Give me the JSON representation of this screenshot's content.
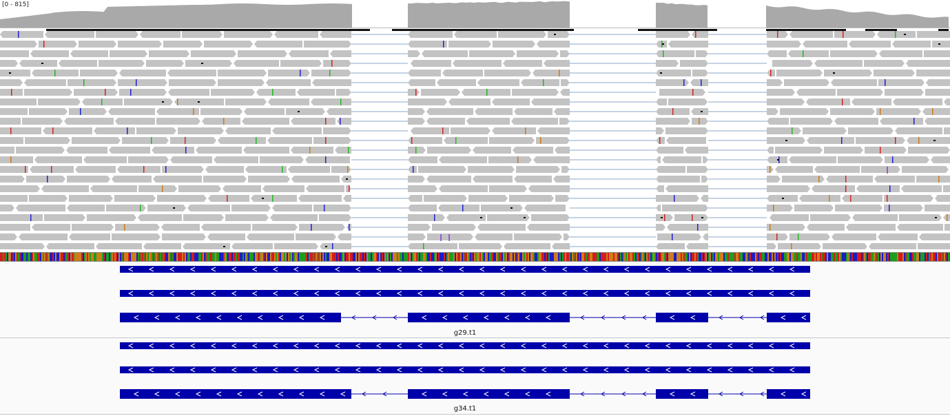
{
  "coverage": {
    "range_label": "[0 - 815]",
    "fill_color": "#a9a9a9"
  },
  "alignments": {
    "read_color": "#c3c3c3",
    "split_line_color": "#8aa7c9",
    "mismatch_colors": [
      "#d62020",
      "#1fb81f",
      "#1f1fd6",
      "#c87b18"
    ],
    "insertion_color": "#7a1fd6",
    "deletion_color": "#000000"
  },
  "reference_sequence": {
    "base_colors": {
      "A": "#1c9e1c",
      "C": "#1c1cc9",
      "G": "#d17c1a",
      "T": "#d41c1c"
    }
  },
  "gene_tracks": [
    {
      "label": "g29.t1",
      "color": "#0000aa",
      "strand": "-"
    },
    {
      "label": "g34.t1",
      "color": "#0000aa",
      "strand": "-"
    }
  ],
  "icons": {
    "strand_arrow": "chevron-left-icon"
  }
}
